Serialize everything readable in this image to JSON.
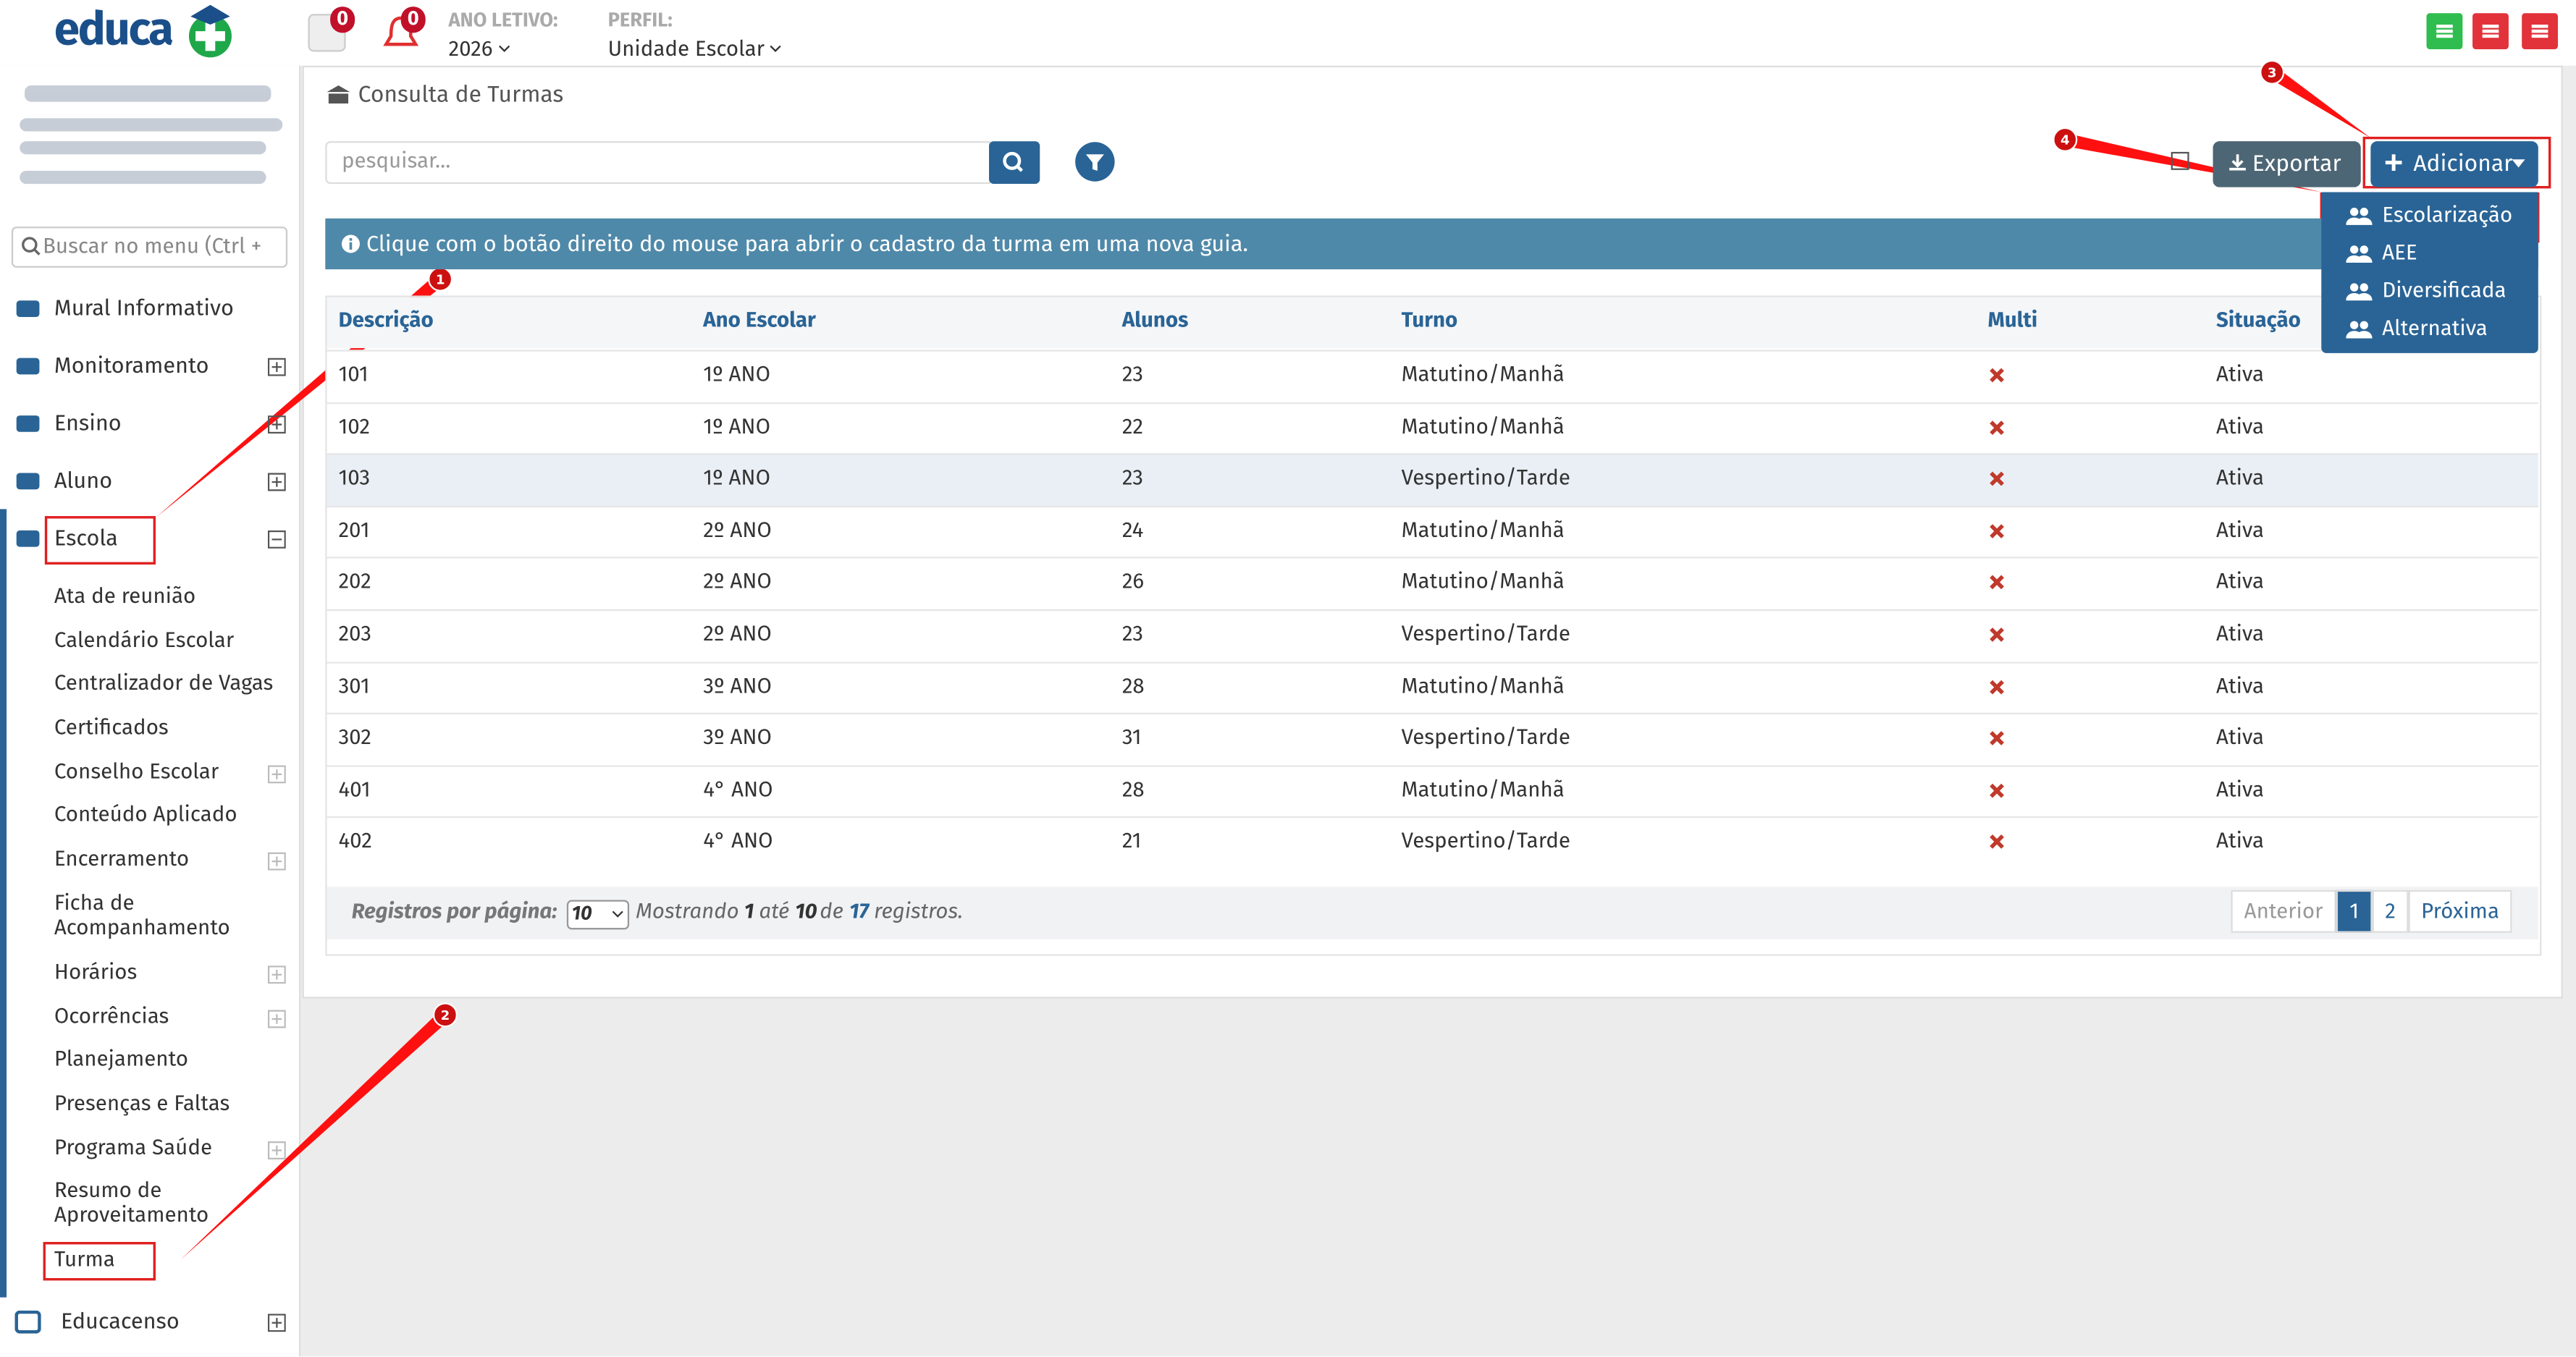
{
  "header": {
    "logo": "educa",
    "notifications": [
      "0",
      "0"
    ],
    "ano_letivo_label": "ANO LETIVO:",
    "ano_letivo": "2026",
    "perfil_label": "PERFIL:",
    "perfil": "Unidade Escolar"
  },
  "sidebar": {
    "search_placeholder": "Buscar no menu (Ctrl +",
    "menu": [
      "Mural Informativo",
      "Monitoramento",
      "Ensino",
      "Aluno",
      "Escola"
    ],
    "submenu": [
      "Ata de reunião",
      "Calendário Escolar",
      "Centralizador de Vagas",
      "Certificados",
      "Conselho Escolar",
      "Conteúdo Aplicado",
      "Encerramento",
      "Ficha de Acompanhamento",
      "Horários",
      "Ocorrências",
      "Planejamento",
      "Presenças e Faltas",
      "Programa Saúde",
      "Resumo de Aproveitamento",
      "Turma"
    ],
    "last_menu": "Educacenso"
  },
  "main": {
    "title": "Consulta de Turmas",
    "search_placeholder": "pesquisar...",
    "export": "Exportar",
    "add": "Adicionar",
    "add_menu": [
      "Escolarização",
      "AEE",
      "Diversificada",
      "Alternativa"
    ],
    "info": "Clique com o botão direito do mouse para abrir o cadastro da turma em uma nova guia."
  },
  "table": {
    "columns": [
      "Descrição",
      "Ano Escolar",
      "Alunos",
      "Turno",
      "Multi",
      "Situação"
    ],
    "rows": [
      [
        "101",
        "1º ANO",
        "23",
        "Matutino/Manhã",
        "Ativa"
      ],
      [
        "102",
        "1º ANO",
        "22",
        "Matutino/Manhã",
        "Ativa"
      ],
      [
        "103",
        "1º ANO",
        "23",
        "Vespertino/Tarde",
        "Ativa"
      ],
      [
        "201",
        "2º ANO",
        "24",
        "Matutino/Manhã",
        "Ativa"
      ],
      [
        "202",
        "2º ANO",
        "26",
        "Matutino/Manhã",
        "Ativa"
      ],
      [
        "203",
        "2º ANO",
        "23",
        "Vespertino/Tarde",
        "Ativa"
      ],
      [
        "301",
        "3º ANO",
        "28",
        "Matutino/Manhã",
        "Ativa"
      ],
      [
        "302",
        "3º ANO",
        "31",
        "Vespertino/Tarde",
        "Ativa"
      ],
      [
        "401",
        "4° ANO",
        "28",
        "Matutino/Manhã",
        "Ativa"
      ],
      [
        "402",
        "4° ANO",
        "21",
        "Vespertino/Tarde",
        "Ativa"
      ]
    ],
    "footer": [
      "Registros por página:",
      "10",
      "Mostrando",
      "1",
      "até",
      "10",
      "de",
      "17",
      "registros."
    ],
    "pagination": [
      "Anterior",
      "1",
      "2",
      "Próxima"
    ]
  },
  "annotations": [
    "1",
    "2",
    "3",
    "4"
  ]
}
